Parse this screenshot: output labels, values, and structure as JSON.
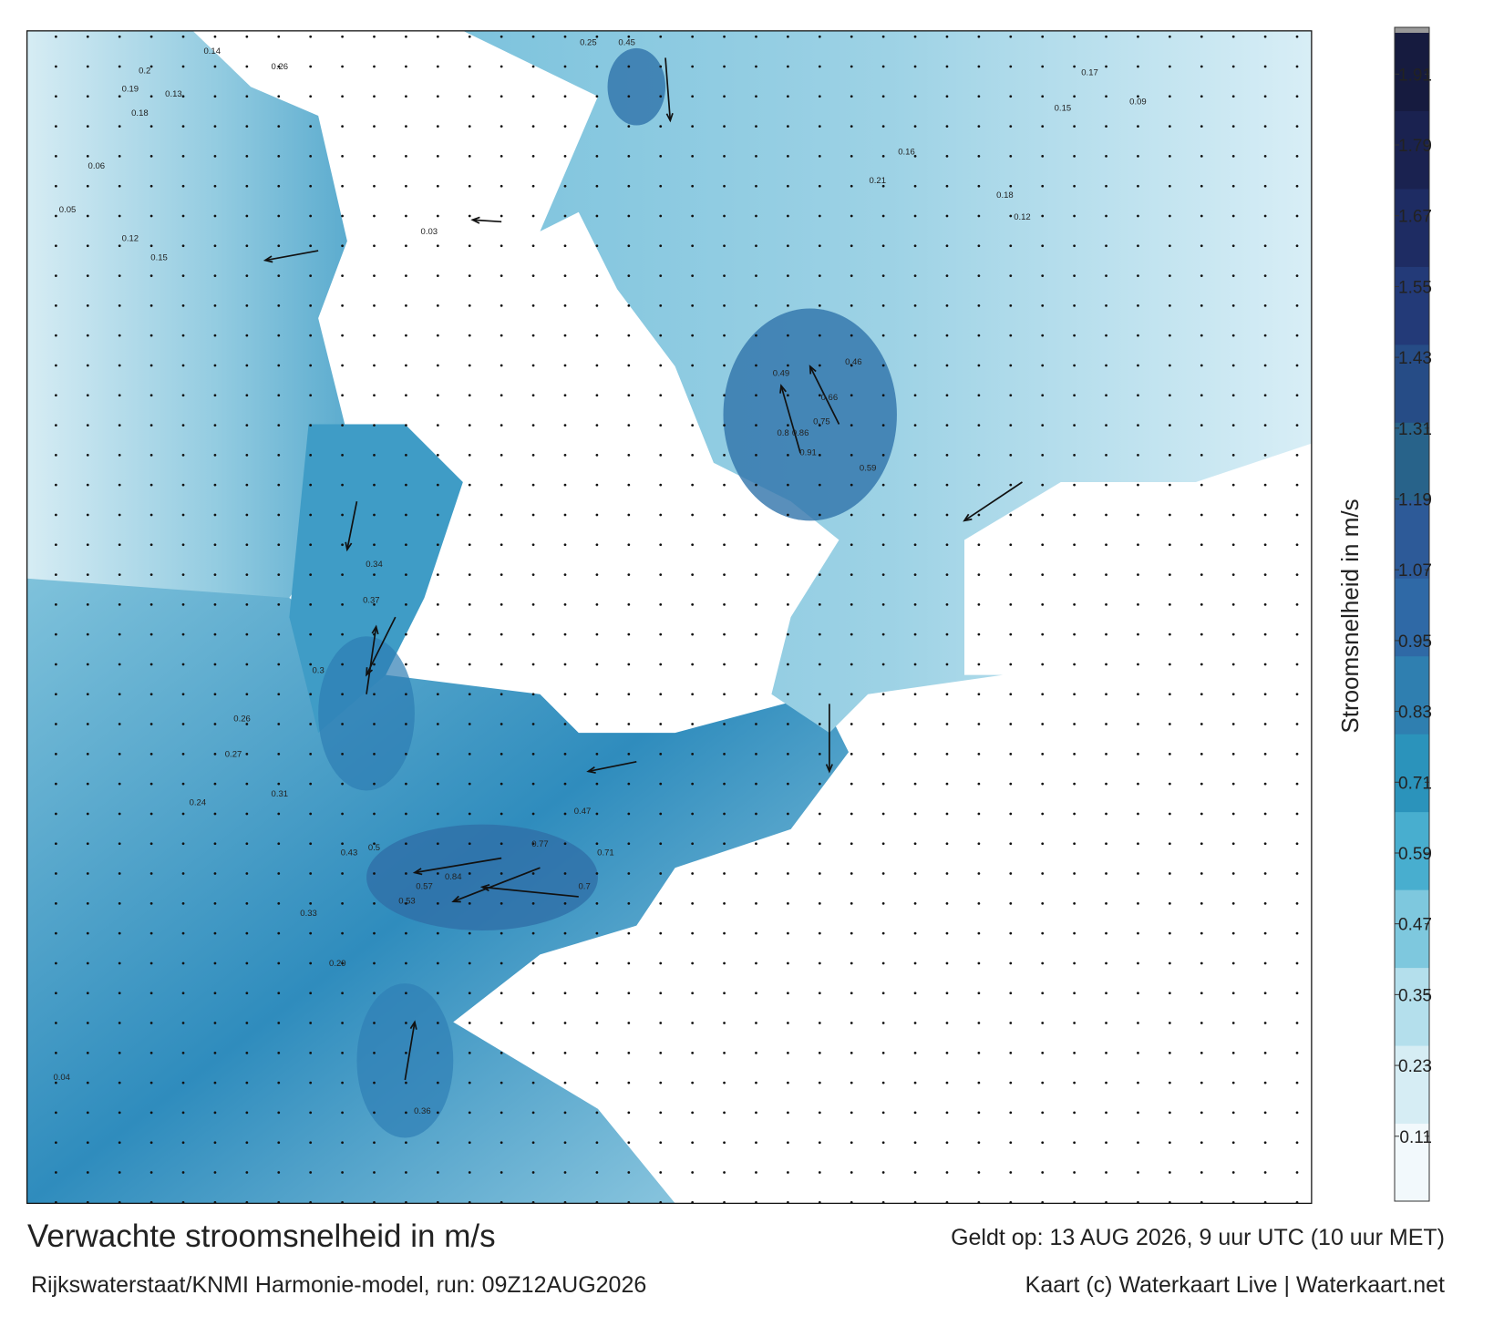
{
  "header": {
    "title": "Verwachte stroomsnelheid in m/s",
    "subtitle": "Rijkswaterstaat/KNMI Harmonie-model, run: 09Z12AUG2026",
    "valid": "Geldt op: 13 AUG 2026, 9 uur UTC (10 uur MET)",
    "credit": "Kaart (c) Waterkaart Live | Waterkaart.net"
  },
  "chart_data": {
    "type": "colorbar",
    "ylabel": "Stroomsnelheid in m/s",
    "ylim": [
      0,
      1.98
    ],
    "yticks": [
      0.11,
      0.23,
      0.35,
      0.47,
      0.59,
      0.71,
      0.83,
      0.95,
      1.07,
      1.19,
      1.31,
      1.43,
      1.55,
      1.67,
      1.79,
      1.91
    ],
    "colors": [
      "#f2f9fc",
      "#d6edf4",
      "#b4dfec",
      "#7ec8de",
      "#48aecf",
      "#2b93bb",
      "#2f7fb0",
      "#2f69a6",
      "#2d5a98",
      "#28638a",
      "#264c86",
      "#233a78",
      "#1e2c63",
      "#1a2250",
      "#161b3f"
    ]
  },
  "map_labels": [
    0.14,
    0.2,
    0.13,
    0.19,
    0.18,
    0.06,
    0.05,
    0.12,
    0.15,
    0.26,
    0.45,
    0.25,
    0.17,
    0.18,
    0.09,
    0.16,
    0.21,
    0.8,
    0.86,
    0.91,
    0.75,
    0.66,
    0.49,
    0.46,
    0.59,
    0.34,
    0.37,
    0.3,
    0.26,
    0.27,
    0.24,
    0.31,
    0.33,
    0.84,
    0.77,
    0.71,
    0.57,
    0.5,
    0.43,
    0.29,
    0.04,
    0.36,
    0.53,
    0.7,
    0.47,
    0.15,
    0.12,
    0.03
  ]
}
